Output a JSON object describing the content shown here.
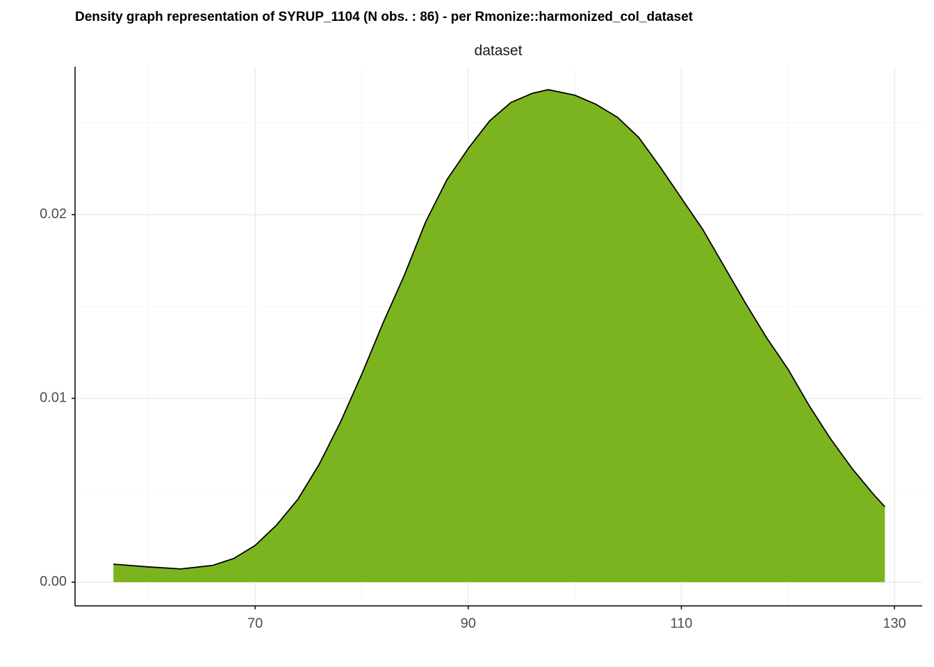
{
  "chart_data": {
    "type": "area",
    "title": "Density graph representation of SYRUP_1104 (N obs. : 86) - per Rmonize::harmonized_col_dataset",
    "strip": "dataset",
    "x": [
      56.7,
      60,
      63,
      66,
      68,
      70,
      72,
      74,
      76,
      78,
      80,
      82,
      84,
      86,
      88,
      90,
      92,
      94,
      96,
      97.5,
      100,
      102,
      104,
      106,
      108,
      110,
      112,
      114,
      116,
      118,
      120,
      122,
      124,
      126,
      128,
      129.1
    ],
    "values": [
      0.00098,
      0.00083,
      0.00072,
      0.00091,
      0.00129,
      0.002,
      0.0031,
      0.0045,
      0.0064,
      0.0087,
      0.0113,
      0.0141,
      0.0167,
      0.0196,
      0.0219,
      0.0236,
      0.0251,
      0.0261,
      0.0266,
      0.0268,
      0.0265,
      0.026,
      0.0253,
      0.0242,
      0.0226,
      0.0209,
      0.0192,
      0.0172,
      0.0152,
      0.0133,
      0.0116,
      0.0096,
      0.0078,
      0.0062,
      0.0048,
      0.0041
    ],
    "color": "#7cb41f",
    "xlim": [
      53.1,
      132.6
    ],
    "xticks": [
      70,
      90,
      110,
      130
    ],
    "ylim": [
      -0.00129,
      0.02805
    ],
    "yticks": [
      {
        "value": 0,
        "label": "0.00"
      },
      {
        "value": 0.01,
        "label": "0.01"
      },
      {
        "value": 0.02,
        "label": "0.02"
      }
    ],
    "grid": true
  }
}
